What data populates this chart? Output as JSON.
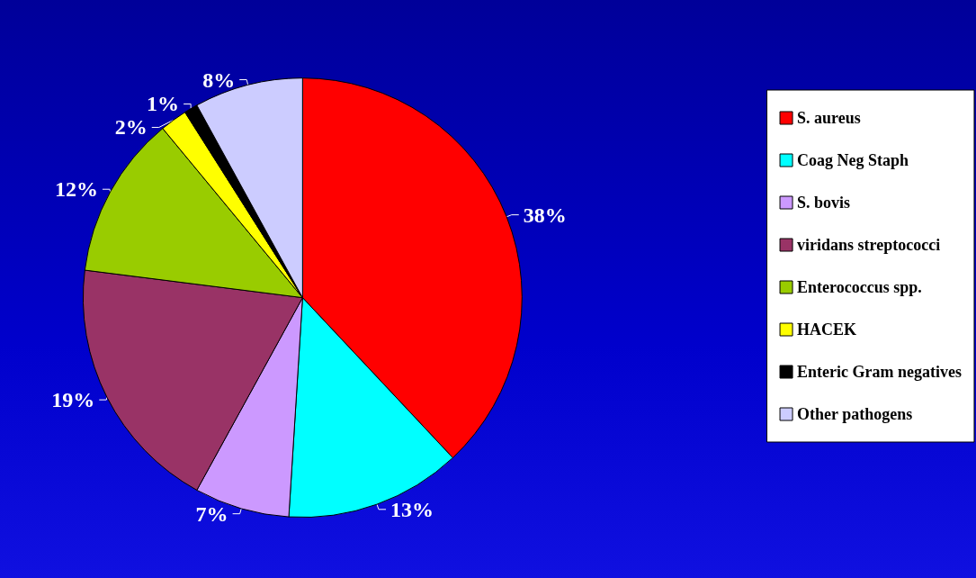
{
  "chart_data": {
    "type": "pie",
    "categories": [
      "S. aureus",
      "Coag Neg Staph",
      "S. bovis",
      "viridans streptococci",
      "Enterococcus spp.",
      "HACEK",
      "Enteric Gram negatives",
      "Other pathogens"
    ],
    "values": [
      38,
      13,
      7,
      19,
      12,
      2,
      1,
      8
    ],
    "value_labels": [
      "38%",
      "13%",
      "7%",
      "19%",
      "12%",
      "2%",
      "1%",
      "8%"
    ],
    "colors": [
      "#ff0000",
      "#00ffff",
      "#cc99ff",
      "#993366",
      "#99cc00",
      "#ffff00",
      "#000000",
      "#ccccff"
    ],
    "legend": "right"
  }
}
